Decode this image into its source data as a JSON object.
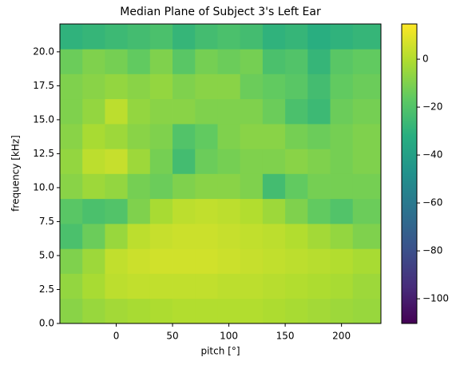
{
  "chart_data": {
    "type": "heatmap",
    "title": "Median Plane of Subject 3's Left Ear",
    "xlabel": "pitch [°]",
    "ylabel": "frequency [kHz]",
    "colormap": "viridis",
    "xedges": [
      -50,
      -30,
      -10,
      10,
      30,
      50,
      70,
      90,
      110,
      130,
      150,
      170,
      190,
      210,
      235
    ],
    "yedges": [
      0,
      1.84,
      3.68,
      5.51,
      7.35,
      9.19,
      11.03,
      12.86,
      14.7,
      16.54,
      18.38,
      20.21,
      22.05
    ],
    "z": [
      [
        -8,
        -5,
        -3,
        -2,
        -1,
        0,
        0,
        0,
        0,
        -1,
        -2,
        -3,
        -4,
        -5
      ],
      [
        -6,
        -2,
        2,
        3,
        3,
        3,
        3,
        2,
        2,
        1,
        0,
        -1,
        -2,
        -4
      ],
      [
        -10,
        -4,
        3,
        5,
        6,
        6,
        6,
        5,
        4,
        3,
        2,
        1,
        0,
        -2
      ],
      [
        -22,
        -14,
        -5,
        2,
        4,
        5,
        5,
        4,
        3,
        2,
        0,
        -3,
        -6,
        -10
      ],
      [
        -18,
        -22,
        -20,
        -10,
        -2,
        2,
        3,
        2,
        0,
        -4,
        -10,
        -16,
        -20,
        -14
      ],
      [
        -8,
        -4,
        -6,
        -12,
        -14,
        -10,
        -8,
        -8,
        -10,
        -24,
        -16,
        -12,
        -12,
        -12
      ],
      [
        -6,
        2,
        4,
        -4,
        -12,
        -24,
        -14,
        -12,
        -10,
        -10,
        -8,
        -10,
        -12,
        -10
      ],
      [
        -8,
        -2,
        -4,
        -8,
        -10,
        -20,
        -16,
        -10,
        -8,
        -8,
        -12,
        -14,
        -12,
        -10
      ],
      [
        -10,
        -6,
        2,
        -6,
        -8,
        -8,
        -10,
        -10,
        -10,
        -14,
        -22,
        -26,
        -14,
        -12
      ],
      [
        -10,
        -8,
        -6,
        -8,
        -6,
        -10,
        -8,
        -8,
        -14,
        -16,
        -18,
        -24,
        -16,
        -14
      ],
      [
        -14,
        -10,
        -12,
        -16,
        -10,
        -18,
        -12,
        -14,
        -12,
        -22,
        -20,
        -28,
        -18,
        -16
      ],
      [
        -30,
        -28,
        -26,
        -24,
        -22,
        -28,
        -24,
        -22,
        -24,
        -30,
        -28,
        -32,
        -30,
        -28
      ]
    ],
    "xlim": [
      -50,
      235
    ],
    "xticks": [
      0,
      50,
      100,
      150,
      200
    ],
    "ylim": [
      0,
      22.05
    ],
    "yticks": [
      {
        "value": 0,
        "label": "0.0"
      },
      {
        "value": 2.5,
        "label": "2.5"
      },
      {
        "value": 5,
        "label": "5.0"
      },
      {
        "value": 7.5,
        "label": "7.5"
      },
      {
        "value": 10,
        "label": "10.0"
      },
      {
        "value": 12.5,
        "label": "12.5"
      },
      {
        "value": 15,
        "label": "15.0"
      },
      {
        "value": 17.5,
        "label": "17.5"
      },
      {
        "value": 20,
        "label": "20.0"
      }
    ],
    "zlim": [
      -110.3,
      14.7
    ],
    "zticks": [
      {
        "value": 0,
        "label": "0"
      },
      {
        "value": -20,
        "label": "−20"
      },
      {
        "value": -40,
        "label": "−40"
      },
      {
        "value": -60,
        "label": "−60"
      },
      {
        "value": -80,
        "label": "−80"
      },
      {
        "value": -100,
        "label": "−100"
      }
    ]
  }
}
